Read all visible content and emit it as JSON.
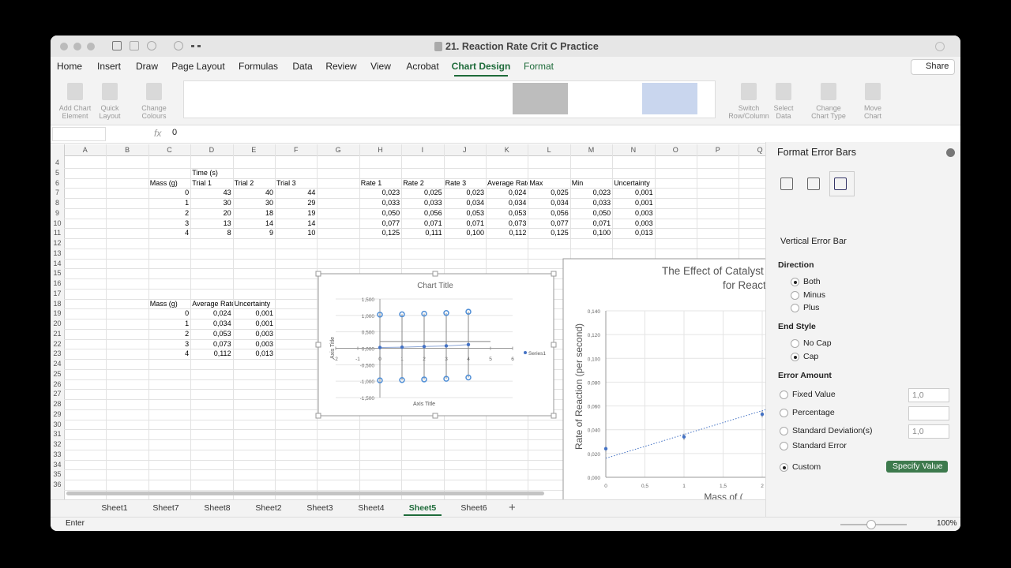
{
  "window": {
    "title": "21. Reaction Rate Crit C Practice"
  },
  "ribbon": {
    "tabs": [
      "Home",
      "Insert",
      "Draw",
      "Page Layout",
      "Formulas",
      "Data",
      "Review",
      "View",
      "Acrobat",
      "Chart Design",
      "Format"
    ],
    "share": "Share",
    "buttons": [
      "Add Chart Element",
      "Quick Layout",
      "Change Colours",
      "Switch Row/Column",
      "Select Data",
      "Change Chart Type",
      "Move Chart"
    ]
  },
  "formula_bar": {
    "fx": "fx",
    "value": "0"
  },
  "sheet": {
    "columns": [
      "A",
      "B",
      "C",
      "D",
      "E",
      "F",
      "G",
      "H",
      "I",
      "J",
      "K",
      "L",
      "M",
      "N",
      "O",
      "P",
      "Q"
    ],
    "rows": [
      {
        "number": "4"
      },
      {
        "number": "5",
        "cells": {
          "D": "Time (s)"
        }
      },
      {
        "number": "6",
        "cells": {
          "C": "Mass (g)",
          "D": "Trial 1",
          "E": "Trial 2",
          "F": "Trial 3",
          "H": "Rate 1",
          "I": "Rate 2",
          "J": "Rate 3",
          "K": "Average Rate",
          "L": "Max",
          "M": "Min",
          "N": "Uncertainty"
        }
      },
      {
        "number": "7",
        "cells": {
          "C": "0",
          "D": "43",
          "E": "40",
          "F": "44",
          "H": "0,023",
          "I": "0,025",
          "J": "0,023",
          "K": "0,024",
          "L": "0,025",
          "M": "0,023",
          "N": "0,001"
        }
      },
      {
        "number": "8",
        "cells": {
          "C": "1",
          "D": "30",
          "E": "30",
          "F": "29",
          "H": "0,033",
          "I": "0,033",
          "J": "0,034",
          "K": "0,034",
          "L": "0,034",
          "M": "0,033",
          "N": "0,001"
        }
      },
      {
        "number": "9",
        "cells": {
          "C": "2",
          "D": "20",
          "E": "18",
          "F": "19",
          "H": "0,050",
          "I": "0,056",
          "J": "0,053",
          "K": "0,053",
          "L": "0,056",
          "M": "0,050",
          "N": "0,003"
        }
      },
      {
        "number": "10",
        "cells": {
          "C": "3",
          "D": "13",
          "E": "14",
          "F": "14",
          "H": "0,077",
          "I": "0,071",
          "J": "0,071",
          "K": "0,073",
          "L": "0,077",
          "M": "0,071",
          "N": "0,003"
        }
      },
      {
        "number": "11",
        "cells": {
          "C": "4",
          "D": "8",
          "E": "9",
          "F": "10",
          "H": "0,125",
          "I": "0,111",
          "J": "0,100",
          "K": "0,112",
          "L": "0,125",
          "M": "0,100",
          "N": "0,013"
        }
      },
      {
        "number": "12"
      },
      {
        "number": "13"
      },
      {
        "number": "14"
      },
      {
        "number": "15"
      },
      {
        "number": "16"
      },
      {
        "number": "17"
      },
      {
        "number": "18",
        "cells": {
          "C": "Mass (g)",
          "D": "Average Rate",
          "E": "Uncertainty"
        }
      },
      {
        "number": "19",
        "cells": {
          "C": "0",
          "D": "0,024",
          "E": "0,001"
        }
      },
      {
        "number": "20",
        "cells": {
          "C": "1",
          "D": "0,034",
          "E": "0,001"
        }
      },
      {
        "number": "21",
        "cells": {
          "C": "2",
          "D": "0,053",
          "E": "0,003"
        }
      },
      {
        "number": "22",
        "cells": {
          "C": "3",
          "D": "0,073",
          "E": "0,003"
        }
      },
      {
        "number": "23",
        "cells": {
          "C": "4",
          "D": "0,112",
          "E": "0,013"
        }
      },
      {
        "number": "24"
      },
      {
        "number": "25"
      },
      {
        "number": "26"
      },
      {
        "number": "27"
      },
      {
        "number": "28"
      },
      {
        "number": "29"
      },
      {
        "number": "30"
      },
      {
        "number": "31"
      },
      {
        "number": "32"
      },
      {
        "number": "33"
      },
      {
        "number": "34"
      },
      {
        "number": "35"
      },
      {
        "number": "36"
      }
    ]
  },
  "charts": [
    {
      "type": "scatter",
      "title": "Chart Title",
      "x_axis_title": "Axis Title",
      "y_axis_title": "Axis Title",
      "x": [
        0,
        1,
        2,
        3,
        4
      ],
      "series": [
        {
          "name": "Series1",
          "color": "#4472c4",
          "values": [
            0.024,
            0.034,
            0.053,
            0.073,
            0.112
          ]
        }
      ],
      "xlim": [
        -2,
        6
      ],
      "ylim": [
        -1.5,
        1.5
      ],
      "xticks": [
        -2,
        -1,
        0,
        1,
        2,
        3,
        4,
        5,
        6
      ],
      "yticks": [
        {
          "value": 1.5,
          "label": "1,500"
        },
        {
          "value": 1,
          "label": "1,000"
        },
        {
          "value": 0.5,
          "label": "0,500"
        },
        {
          "value": 0,
          "label": "0,000"
        },
        {
          "value": -0.5,
          "label": "-0,500"
        },
        {
          "value": -1,
          "label": "-1,000"
        },
        {
          "value": -1.5,
          "label": "-1,500"
        }
      ],
      "grid": true
    },
    {
      "type": "scatter",
      "title_lines": [
        "The Effect of Catalyst I",
        "for React"
      ],
      "x_axis_title": "Mass of (",
      "y_axis_title": "Rate of Reaction (per second)",
      "x": [
        0,
        1,
        2
      ],
      "series": [
        {
          "color": "#4472c4",
          "values": [
            0.024,
            0.034,
            0.053
          ]
        }
      ],
      "xlim": [
        0,
        4
      ],
      "ylim": [
        0,
        0.14
      ],
      "xticks": [
        0,
        {
          "value": 0.5,
          "label": "0,5"
        },
        1,
        {
          "value": 1.5,
          "label": "1,5"
        },
        2
      ],
      "yticks": [
        {
          "value": 0.14,
          "label": "0,140"
        },
        {
          "value": 0.12,
          "label": "0,120"
        },
        {
          "value": 0.1,
          "label": "0,100"
        },
        {
          "value": 0.08,
          "label": "0,080"
        },
        {
          "value": 0.06,
          "label": "0,060"
        },
        {
          "value": 0.04,
          "label": "0,040"
        },
        {
          "value": 0.02,
          "label": "0,020"
        },
        {
          "value": 0,
          "label": "0,000"
        }
      ],
      "grid": true
    }
  ],
  "pane": {
    "title": "Format Error Bars",
    "section": "Vertical Error Bar",
    "direction": {
      "heading": "Direction",
      "options": [
        "Both",
        "Minus",
        "Plus"
      ]
    },
    "end_style": {
      "heading": "End Style",
      "options": [
        "No Cap",
        "Cap"
      ]
    },
    "error_amount": {
      "heading": "Error Amount",
      "options": [
        "Fixed Value",
        "Percentage",
        "Standard Deviation(s)",
        "Standard Error",
        "Custom"
      ],
      "fixed_value": "1,0",
      "std_dev_value": "1,0",
      "specify": "Specify Value"
    }
  },
  "sheet_tabs": [
    "Sheet1",
    "Sheet7",
    "Sheet8",
    "Sheet2",
    "Sheet3",
    "Sheet4",
    "Sheet5",
    "Sheet6"
  ],
  "status": {
    "mode": "Enter",
    "zoom": "100%"
  }
}
